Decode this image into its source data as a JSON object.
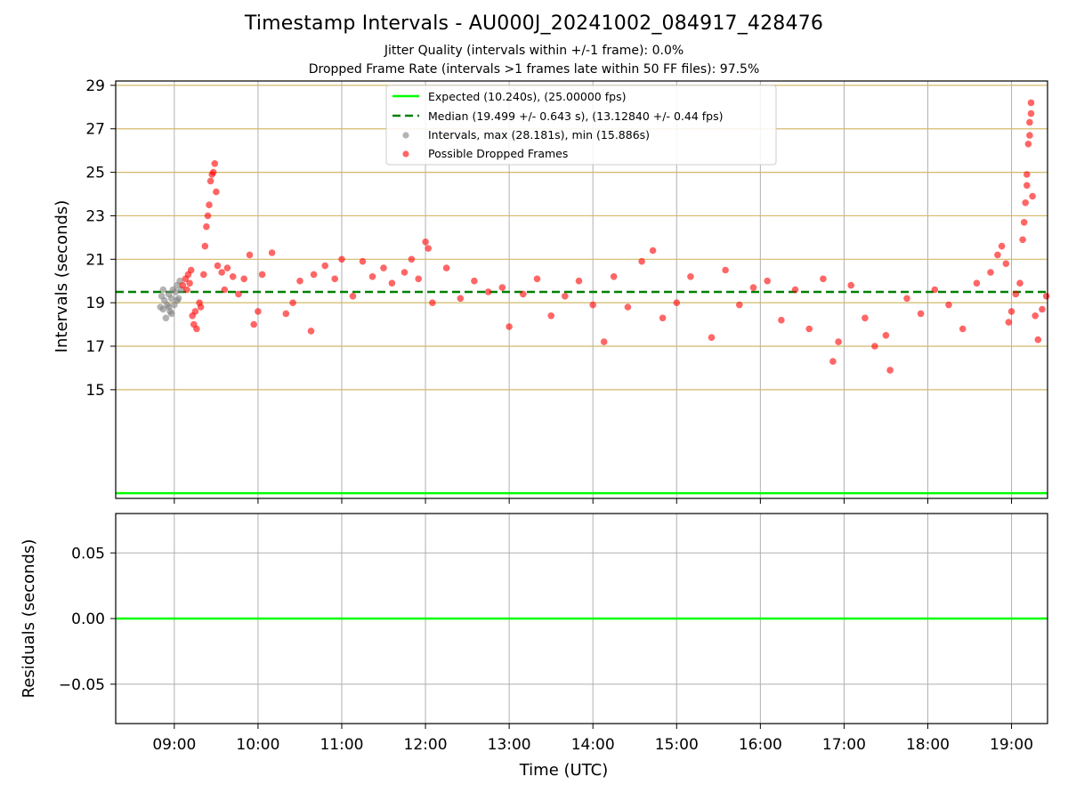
{
  "chart_data": [
    {
      "type": "scatter",
      "title": "Timestamp Intervals - AU000J_20241002_084917_428476",
      "subtitles": [
        "Jitter Quality (intervals within +/-1 frame): 0.0%",
        "Dropped Frame Rate (intervals >1 frames late within 50 FF files): 97.5%"
      ],
      "ylabel": "Intervals (seconds)",
      "xlabel": "",
      "ylim": [
        10.0,
        29.2
      ],
      "xlim_hours_utc": [
        8.3,
        19.43
      ],
      "y_ticks": [
        "15",
        "17",
        "19",
        "21",
        "23",
        "25",
        "27",
        "29"
      ],
      "y_tick_values": [
        15,
        17,
        19,
        21,
        23,
        25,
        27,
        29
      ],
      "x_tick_hours": [
        9,
        10,
        11,
        12,
        13,
        14,
        15,
        16,
        17,
        18,
        19
      ],
      "grid": true,
      "legend_position": "top-center",
      "lines": [
        {
          "name": "Expected (10.240s), (25.00000 fps)",
          "value": 10.24,
          "style": "solid",
          "color": "#00ff00"
        },
        {
          "name": "Median (19.499 +/- 0.643 s), (13.12840 +/- 0.44 fps)",
          "value": 19.499,
          "style": "dashed",
          "color": "#008000"
        }
      ],
      "series": [
        {
          "name": "Intervals, max (28.181s), min (15.886s)",
          "color": "#808080",
          "points": [
            [
              "08:50",
              18.8
            ],
            [
              "08:51",
              19.3
            ],
            [
              "08:52",
              18.7
            ],
            [
              "08:53",
              19.1
            ],
            [
              "08:54",
              18.3
            ],
            [
              "08:55",
              18.9
            ],
            [
              "08:56",
              19.4
            ],
            [
              "08:57",
              18.6
            ],
            [
              "08:58",
              19.2
            ],
            [
              "08:59",
              19.6
            ],
            [
              "09:00",
              18.9
            ],
            [
              "09:01",
              19.5
            ],
            [
              "09:02",
              19.8
            ],
            [
              "09:03",
              19.2
            ],
            [
              "09:04",
              20.0
            ],
            [
              "09:05",
              19.6
            ],
            [
              "08:52",
              19.6
            ],
            [
              "08:56",
              18.8
            ],
            [
              "09:02",
              19.1
            ],
            [
              "08:58",
              18.5
            ]
          ]
        },
        {
          "name": "Possible Dropped Frames",
          "color": "#ff0000",
          "points": [
            [
              "09:06",
              19.8
            ],
            [
              "09:08",
              20.1
            ],
            [
              "09:09",
              19.6
            ],
            [
              "09:10",
              20.3
            ],
            [
              "09:11",
              19.9
            ],
            [
              "09:12",
              20.5
            ],
            [
              "09:13",
              18.4
            ],
            [
              "09:14",
              18.0
            ],
            [
              "09:15",
              18.6
            ],
            [
              "09:16",
              17.8
            ],
            [
              "09:18",
              19.0
            ],
            [
              "09:19",
              18.8
            ],
            [
              "09:21",
              20.3
            ],
            [
              "09:22",
              21.6
            ],
            [
              "09:23",
              22.5
            ],
            [
              "09:24",
              23.0
            ],
            [
              "09:25",
              23.5
            ],
            [
              "09:26",
              24.6
            ],
            [
              "09:27",
              24.9
            ],
            [
              "09:28",
              25.0
            ],
            [
              "09:29",
              25.4
            ],
            [
              "09:30",
              24.1
            ],
            [
              "09:31",
              20.7
            ],
            [
              "09:34",
              20.4
            ],
            [
              "09:36",
              19.6
            ],
            [
              "09:38",
              20.6
            ],
            [
              "09:42",
              20.2
            ],
            [
              "09:46",
              19.4
            ],
            [
              "09:50",
              20.1
            ],
            [
              "09:54",
              21.2
            ],
            [
              "09:57",
              18.0
            ],
            [
              "10:00",
              18.6
            ],
            [
              "10:03",
              20.3
            ],
            [
              "10:10",
              21.3
            ],
            [
              "10:20",
              18.5
            ],
            [
              "10:25",
              19.0
            ],
            [
              "10:30",
              20.0
            ],
            [
              "10:38",
              17.7
            ],
            [
              "10:40",
              20.3
            ],
            [
              "10:48",
              20.7
            ],
            [
              "10:55",
              20.1
            ],
            [
              "11:00",
              21.0
            ],
            [
              "11:08",
              19.3
            ],
            [
              "11:15",
              20.9
            ],
            [
              "11:22",
              20.2
            ],
            [
              "11:30",
              20.6
            ],
            [
              "11:36",
              19.9
            ],
            [
              "11:45",
              20.4
            ],
            [
              "11:50",
              21.0
            ],
            [
              "11:55",
              20.1
            ],
            [
              "12:00",
              21.8
            ],
            [
              "12:02",
              21.5
            ],
            [
              "12:05",
              19.0
            ],
            [
              "12:15",
              20.6
            ],
            [
              "12:25",
              19.2
            ],
            [
              "12:35",
              20.0
            ],
            [
              "12:45",
              19.5
            ],
            [
              "12:55",
              19.7
            ],
            [
              "13:00",
              17.9
            ],
            [
              "13:10",
              19.4
            ],
            [
              "13:20",
              20.1
            ],
            [
              "13:30",
              18.4
            ],
            [
              "13:40",
              19.3
            ],
            [
              "13:50",
              20.0
            ],
            [
              "14:00",
              18.9
            ],
            [
              "14:08",
              17.2
            ],
            [
              "14:15",
              20.2
            ],
            [
              "14:25",
              18.8
            ],
            [
              "14:35",
              20.9
            ],
            [
              "14:43",
              21.4
            ],
            [
              "14:50",
              18.3
            ],
            [
              "15:00",
              19.0
            ],
            [
              "15:10",
              20.2
            ],
            [
              "15:25",
              17.4
            ],
            [
              "15:35",
              20.5
            ],
            [
              "15:45",
              18.9
            ],
            [
              "15:55",
              19.7
            ],
            [
              "16:05",
              20.0
            ],
            [
              "16:15",
              18.2
            ],
            [
              "16:25",
              19.6
            ],
            [
              "16:35",
              17.8
            ],
            [
              "16:45",
              20.1
            ],
            [
              "16:52",
              16.3
            ],
            [
              "16:56",
              17.2
            ],
            [
              "17:05",
              19.8
            ],
            [
              "17:15",
              18.3
            ],
            [
              "17:22",
              17.0
            ],
            [
              "17:30",
              17.5
            ],
            [
              "17:33",
              15.9
            ],
            [
              "17:45",
              19.2
            ],
            [
              "17:55",
              18.5
            ],
            [
              "18:05",
              19.6
            ],
            [
              "18:15",
              18.9
            ],
            [
              "18:25",
              17.8
            ],
            [
              "18:35",
              19.9
            ],
            [
              "18:45",
              20.4
            ],
            [
              "18:50",
              21.2
            ],
            [
              "18:53",
              21.6
            ],
            [
              "18:56",
              20.8
            ],
            [
              "18:58",
              18.1
            ],
            [
              "19:00",
              18.6
            ],
            [
              "19:03",
              19.4
            ],
            [
              "19:06",
              19.9
            ],
            [
              "19:08",
              21.9
            ],
            [
              "19:09",
              22.7
            ],
            [
              "19:10",
              23.6
            ],
            [
              "19:11",
              24.4
            ],
            [
              "19:11",
              24.9
            ],
            [
              "19:12",
              26.3
            ],
            [
              "19:13",
              26.7
            ],
            [
              "19:13",
              27.3
            ],
            [
              "19:14",
              27.7
            ],
            [
              "19:14",
              28.2
            ],
            [
              "19:15",
              23.9
            ],
            [
              "19:17",
              18.4
            ],
            [
              "19:19",
              17.3
            ],
            [
              "19:22",
              18.7
            ],
            [
              "19:25",
              19.3
            ]
          ]
        }
      ]
    },
    {
      "type": "line",
      "ylabel": "Residuals (seconds)",
      "xlabel": "Time (UTC)",
      "ylim": [
        -0.08,
        0.08
      ],
      "y_ticks": [
        "0.05",
        "0.00",
        "−0.05"
      ],
      "y_tick_values": [
        0.05,
        0.0,
        -0.05
      ],
      "x_ticks": [
        "09:00",
        "10:00",
        "11:00",
        "12:00",
        "13:00",
        "14:00",
        "15:00",
        "16:00",
        "17:00",
        "18:00",
        "19:00"
      ],
      "grid": true,
      "series": [
        {
          "color": "#00ff00",
          "values": [
            0.0
          ]
        }
      ]
    }
  ]
}
